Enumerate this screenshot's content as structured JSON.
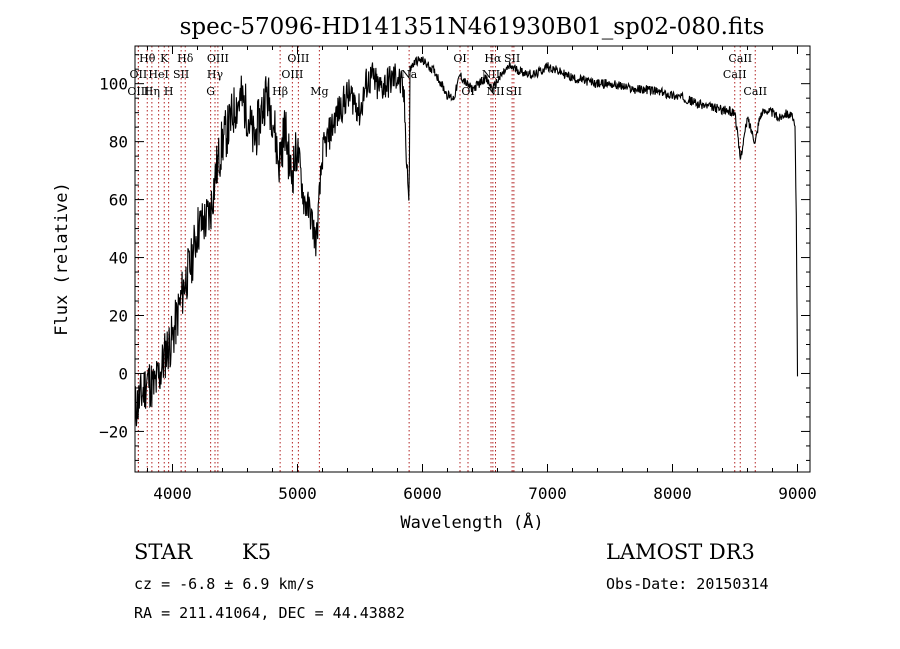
{
  "chart_data": {
    "type": "line",
    "title": "spec-57096-HD141351N461930B01_sp02-080.fits",
    "xlabel": "Wavelength (Å)",
    "ylabel": "Flux (relative)",
    "xlim": [
      3700,
      9100
    ],
    "ylim": [
      -34,
      113
    ],
    "xticks": [
      4000,
      5000,
      6000,
      7000,
      8000,
      9000
    ],
    "yticks": [
      -20,
      0,
      20,
      40,
      60,
      80,
      100
    ],
    "series": [
      {
        "name": "spectrum",
        "x": [
          3700,
          3750,
          3800,
          3850,
          3900,
          3950,
          4000,
          4050,
          4100,
          4150,
          4200,
          4250,
          4300,
          4350,
          4400,
          4450,
          4500,
          4550,
          4600,
          4650,
          4700,
          4750,
          4800,
          4850,
          4900,
          4950,
          5000,
          5050,
          5100,
          5150,
          5200,
          5250,
          5300,
          5350,
          5400,
          5450,
          5500,
          5550,
          5600,
          5650,
          5700,
          5750,
          5800,
          5850,
          5890,
          5895,
          5900,
          5950,
          6000,
          6050,
          6100,
          6150,
          6200,
          6250,
          6300,
          6350,
          6400,
          6450,
          6500,
          6563,
          6600,
          6650,
          6700,
          6800,
          6900,
          7000,
          7100,
          7200,
          7300,
          7400,
          7500,
          7600,
          7700,
          7800,
          7900,
          8000,
          8100,
          8200,
          8300,
          8400,
          8500,
          8542,
          8600,
          8662,
          8700,
          8750,
          8800,
          8850,
          8900,
          8950,
          8980,
          8990,
          9000
        ],
        "y": [
          -12,
          -8,
          -2,
          -5,
          0,
          8,
          12,
          22,
          32,
          38,
          50,
          52,
          55,
          70,
          80,
          85,
          92,
          95,
          90,
          80,
          88,
          97,
          90,
          72,
          85,
          68,
          78,
          60,
          56,
          45,
          76,
          82,
          88,
          92,
          96,
          95,
          90,
          100,
          102,
          98,
          100,
          101,
          103,
          96,
          60,
          70,
          105,
          108,
          108,
          106,
          104,
          100,
          96,
          95,
          103,
          100,
          98,
          100,
          102,
          98,
          101,
          104,
          106,
          104,
          103,
          106,
          104,
          102,
          101,
          100,
          100,
          99,
          98,
          98,
          97,
          96,
          95,
          93,
          92,
          91,
          90,
          74,
          88,
          80,
          89,
          91,
          90,
          88,
          90,
          89,
          85,
          55,
          -1
        ]
      }
    ],
    "spectral_lines": [
      {
        "label": "Hθ",
        "wl": 3798,
        "row": 0
      },
      {
        "label": "OII",
        "wl": 3727,
        "row": 1
      },
      {
        "label": "OIII",
        "wl": 3727,
        "row": 2
      },
      {
        "label": "Hη",
        "wl": 3835,
        "row": 2
      },
      {
        "label": "K",
        "wl": 3934,
        "row": 0
      },
      {
        "label": "HeI",
        "wl": 3889,
        "row": 1
      },
      {
        "label": "H",
        "wl": 3969,
        "row": 2
      },
      {
        "label": "SII",
        "wl": 4069,
        "row": 1
      },
      {
        "label": "Hδ",
        "wl": 4102,
        "row": 0
      },
      {
        "label": "OIII",
        "wl": 4363,
        "row": 0
      },
      {
        "label": "Hγ",
        "wl": 4340,
        "row": 1
      },
      {
        "label": "G",
        "wl": 4305,
        "row": 2
      },
      {
        "label": "Hβ",
        "wl": 4861,
        "row": 2
      },
      {
        "label": "OIII",
        "wl": 5007,
        "row": 0
      },
      {
        "label": "OIII",
        "wl": 4959,
        "row": 1
      },
      {
        "label": "Mg",
        "wl": 5175,
        "row": 2
      },
      {
        "label": "Na",
        "wl": 5893,
        "row": 1
      },
      {
        "label": "OI",
        "wl": 6300,
        "row": 0
      },
      {
        "label": "OI",
        "wl": 6364,
        "row": 2
      },
      {
        "label": "Hα",
        "wl": 6563,
        "row": 0
      },
      {
        "label": "NII",
        "wl": 6548,
        "row": 1
      },
      {
        "label": "NII",
        "wl": 6584,
        "row": 2
      },
      {
        "label": "SII",
        "wl": 6717,
        "row": 0
      },
      {
        "label": "SII",
        "wl": 6731,
        "row": 2
      },
      {
        "label": "CaII",
        "wl": 8542,
        "row": 0
      },
      {
        "label": "CaII",
        "wl": 8498,
        "row": 1
      },
      {
        "label": "CaII",
        "wl": 8662,
        "row": 2
      }
    ]
  },
  "info": {
    "object_class": "STAR",
    "subclass": "K5",
    "survey": "LAMOST DR3",
    "velocity": "cz = -6.8 ± 6.9 km/s",
    "obs_date": "Obs-Date: 20150314",
    "coords": "RA = 211.41064, DEC =  44.43882"
  },
  "colors": {
    "line": "#000000",
    "marker": "#b22222",
    "background": "#ffffff"
  }
}
